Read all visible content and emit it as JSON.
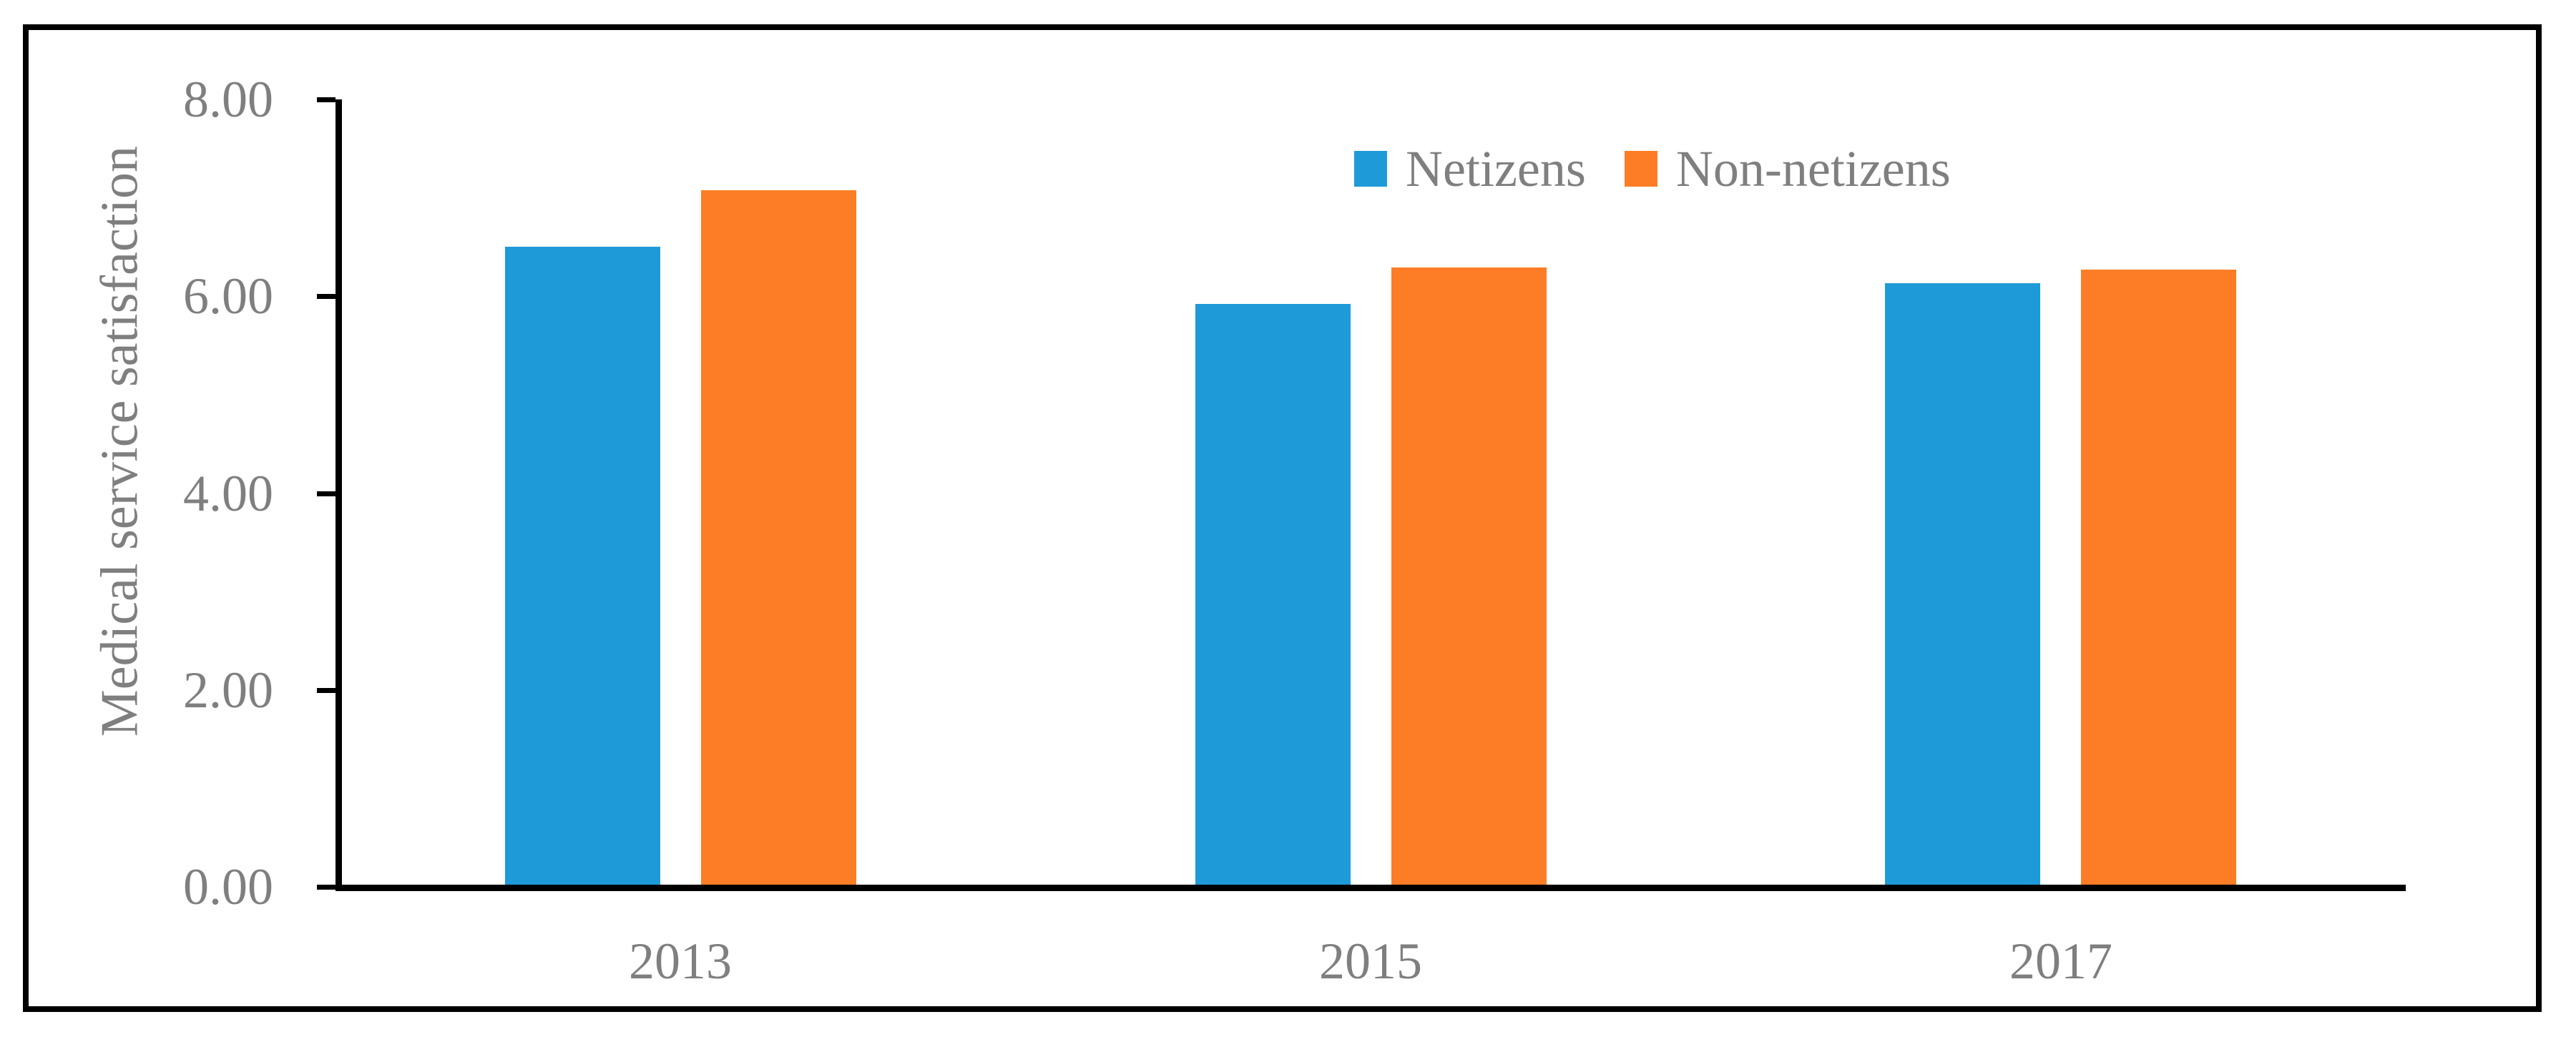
{
  "figure": {
    "kind": "grouped-bar-chart-figure",
    "background_color": "#ffffff",
    "frame_color": "#000000",
    "axis_color": "#000000",
    "text_color": "#7f7f7f"
  },
  "chart_data": {
    "type": "bar",
    "title": "",
    "categories": [
      "2013",
      "2015",
      "2017"
    ],
    "series": [
      {
        "name": "Netizens",
        "color": "#1E9AD9",
        "values": [
          6.5,
          5.92,
          6.13
        ]
      },
      {
        "name": "Non-netizens",
        "color": "#FC7D26",
        "values": [
          7.08,
          6.29,
          6.27
        ]
      }
    ],
    "xlabel": "",
    "ylabel": "Medical service satisfaction",
    "ylim": [
      0,
      8
    ],
    "yticks": [
      {
        "value": 0,
        "label": "0.00"
      },
      {
        "value": 2,
        "label": "2.00"
      },
      {
        "value": 4,
        "label": "4.00"
      },
      {
        "value": 6,
        "label": "6.00"
      },
      {
        "value": 8,
        "label": "8.00"
      }
    ],
    "grid": false,
    "legend": {
      "position": "top-inside-right",
      "entries": [
        "Netizens",
        "Non-netizens"
      ]
    }
  }
}
